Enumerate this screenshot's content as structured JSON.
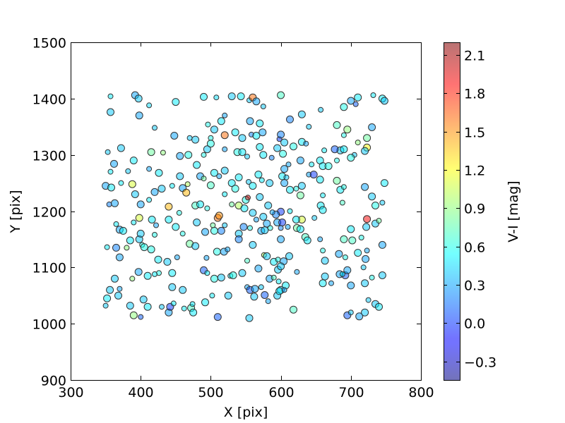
{
  "chart_data": {
    "type": "scatter",
    "xlabel": "X [pix]",
    "ylabel": "Y [pix]",
    "xlim": [
      300,
      800
    ],
    "ylim": [
      900,
      1500
    ],
    "xticks": [
      300,
      400,
      500,
      600,
      700,
      800
    ],
    "yticks": [
      900,
      1000,
      1100,
      1200,
      1300,
      1400,
      1500
    ],
    "colorbar": {
      "label": "V-I [mag]",
      "range": [
        -0.45,
        2.2
      ],
      "ticks": [
        "2.1",
        "1.8",
        "1.5",
        "1.2",
        "0.9",
        "0.6",
        "0.3",
        "0.0",
        "−0.3"
      ],
      "tick_values": [
        2.1,
        1.8,
        1.5,
        1.2,
        0.9,
        0.6,
        0.3,
        0.0,
        -0.3
      ],
      "colormap": "jet"
    },
    "grid": false,
    "points": [
      [
        357,
        1404,
        0.5
      ],
      [
        392,
        1406,
        0.3
      ],
      [
        397,
        1400,
        0.4
      ],
      [
        412,
        1388,
        0.45
      ],
      [
        450,
        1394,
        0.5
      ],
      [
        490,
        1403,
        0.5
      ],
      [
        508,
        1402,
        0.45
      ],
      [
        530,
        1404,
        0.4
      ],
      [
        543,
        1404,
        0.5
      ],
      [
        555,
        1397,
        0.4
      ],
      [
        560,
        1402,
        1.6
      ],
      [
        565,
        1395,
        0.3
      ],
      [
        575,
        1386,
        0.4
      ],
      [
        600,
        1406,
        0.7
      ],
      [
        710,
        1402,
        0.5
      ],
      [
        732,
        1406,
        0.5
      ],
      [
        745,
        1400,
        0.5
      ],
      [
        748,
        1396,
        0.4
      ],
      [
        707,
        1390,
        0.1
      ],
      [
        700,
        1396,
        0.3
      ],
      [
        690,
        1385,
        0.6
      ],
      [
        657,
        1380,
        0.4
      ],
      [
        630,
        1372,
        0.4
      ],
      [
        613,
        1363,
        0.2
      ],
      [
        520,
        1370,
        0.3
      ],
      [
        556,
        1360,
        0.3
      ],
      [
        515,
        1360,
        0.5
      ],
      [
        496,
        1354,
        0.6
      ],
      [
        398,
        1370,
        0.3
      ],
      [
        357,
        1376,
        0.4
      ],
      [
        420,
        1348,
        0.4
      ],
      [
        505,
        1345,
        0.4
      ],
      [
        570,
        1356,
        0.5
      ],
      [
        640,
        1350,
        0.4
      ],
      [
        680,
        1353,
        0.7
      ],
      [
        695,
        1345,
        0.9
      ],
      [
        690,
        1335,
        0.6
      ],
      [
        730,
        1349,
        0.3
      ],
      [
        723,
        1330,
        0.8
      ],
      [
        710,
        1322,
        0.9
      ],
      [
        723,
        1313,
        1.2
      ],
      [
        720,
        1307,
        0.4
      ],
      [
        705,
        1300,
        0.4
      ],
      [
        685,
        1308,
        0.4
      ],
      [
        677,
        1310,
        0.1
      ],
      [
        662,
        1308,
        0.5
      ],
      [
        656,
        1290,
        0.5
      ],
      [
        630,
        1323,
        0.5
      ],
      [
        636,
        1320,
        0.3
      ],
      [
        618,
        1315,
        0.6
      ],
      [
        605,
        1322,
        0.4
      ],
      [
        598,
        1328,
        0.0
      ],
      [
        600,
        1336,
        0.2
      ],
      [
        574,
        1340,
        0.3
      ],
      [
        558,
        1336,
        0.2
      ],
      [
        565,
        1334,
        0.5
      ],
      [
        520,
        1335,
        1.6
      ],
      [
        500,
        1330,
        0.6
      ],
      [
        478,
        1327,
        0.4
      ],
      [
        448,
        1334,
        0.3
      ],
      [
        353,
        1305,
        0.4
      ],
      [
        372,
        1312,
        0.4
      ],
      [
        362,
        1284,
        0.3
      ],
      [
        382,
        1271,
        0.4
      ],
      [
        390,
        1290,
        0.5
      ],
      [
        415,
        1305,
        0.8
      ],
      [
        432,
        1304,
        0.9
      ],
      [
        456,
        1298,
        0.3
      ],
      [
        468,
        1300,
        0.6
      ],
      [
        490,
        1300,
        0.6
      ],
      [
        495,
        1310,
        0.4
      ],
      [
        500,
        1320,
        0.6
      ],
      [
        520,
        1310,
        0.3
      ],
      [
        538,
        1305,
        0.6
      ],
      [
        545,
        1305,
        0.5
      ],
      [
        552,
        1297,
        0.4
      ],
      [
        570,
        1314,
        0.5
      ],
      [
        575,
        1300,
        0.5
      ],
      [
        587,
        1295,
        0.2
      ],
      [
        595,
        1312,
        0.4
      ],
      [
        603,
        1302,
        0.6
      ],
      [
        611,
        1283,
        0.3
      ],
      [
        605,
        1275,
        0.3
      ],
      [
        628,
        1290,
        0.3
      ],
      [
        644,
        1283,
        0.5
      ],
      [
        660,
        1280,
        0.5
      ],
      [
        668,
        1280,
        0.6
      ],
      [
        680,
        1290,
        0.6
      ],
      [
        690,
        1310,
        0.5
      ],
      [
        700,
        1295,
        0.6
      ],
      [
        357,
        1270,
        0.5
      ],
      [
        350,
        1245,
        0.3
      ],
      [
        358,
        1242,
        0.5
      ],
      [
        372,
        1250,
        0.5
      ],
      [
        388,
        1248,
        1.1
      ],
      [
        392,
        1230,
        0.4
      ],
      [
        412,
        1275,
        0.3
      ],
      [
        426,
        1268,
        0.5
      ],
      [
        430,
        1240,
        0.4
      ],
      [
        445,
        1245,
        0.5
      ],
      [
        456,
        1262,
        0.4
      ],
      [
        460,
        1241,
        0.3
      ],
      [
        467,
        1248,
        1.0
      ],
      [
        465,
        1233,
        1.4
      ],
      [
        485,
        1262,
        0.3
      ],
      [
        490,
        1258,
        0.8
      ],
      [
        500,
        1246,
        0.7
      ],
      [
        505,
        1268,
        0.5
      ],
      [
        512,
        1262,
        0.3
      ],
      [
        520,
        1272,
        0.4
      ],
      [
        530,
        1250,
        0.5
      ],
      [
        520,
        1230,
        0.5
      ],
      [
        535,
        1240,
        0.6
      ],
      [
        540,
        1260,
        0.5
      ],
      [
        554,
        1252,
        0.4
      ],
      [
        560,
        1245,
        0.5
      ],
      [
        568,
        1265,
        0.5
      ],
      [
        573,
        1255,
        0.5
      ],
      [
        584,
        1250,
        0.4
      ],
      [
        602,
        1262,
        0.5
      ],
      [
        608,
        1260,
        0.4
      ],
      [
        605,
        1250,
        0.3
      ],
      [
        613,
        1238,
        0.5
      ],
      [
        622,
        1240,
        0.6
      ],
      [
        628,
        1228,
        0.8
      ],
      [
        630,
        1245,
        0.4
      ],
      [
        640,
        1265,
        0.3
      ],
      [
        647,
        1265,
        0.0
      ],
      [
        656,
        1256,
        0.5
      ],
      [
        660,
        1228,
        0.5
      ],
      [
        680,
        1254,
        0.8
      ],
      [
        685,
        1238,
        0.5
      ],
      [
        690,
        1243,
        0.6
      ],
      [
        720,
        1243,
        0.3
      ],
      [
        748,
        1250,
        0.5
      ],
      [
        745,
        1215,
        0.4
      ],
      [
        730,
        1226,
        0.4
      ],
      [
        735,
        1210,
        0.6
      ],
      [
        688,
        1215,
        0.7
      ],
      [
        657,
        1210,
        0.5
      ],
      [
        660,
        1202,
        0.5
      ],
      [
        648,
        1188,
        0.4
      ],
      [
        630,
        1185,
        1.1
      ],
      [
        622,
        1185,
        0.5
      ],
      [
        613,
        1200,
        0.5
      ],
      [
        600,
        1199,
        0.0
      ],
      [
        593,
        1194,
        0.2
      ],
      [
        588,
        1198,
        0.3
      ],
      [
        582,
        1210,
        0.4
      ],
      [
        570,
        1225,
        0.4
      ],
      [
        355,
        1212,
        0.2
      ],
      [
        363,
        1214,
        0.3
      ],
      [
        400,
        1212,
        0.3
      ],
      [
        412,
        1220,
        0.5
      ],
      [
        420,
        1234,
        0.3
      ],
      [
        440,
        1208,
        1.4
      ],
      [
        455,
        1197,
        0.6
      ],
      [
        478,
        1210,
        0.7
      ],
      [
        485,
        1212,
        0.5
      ],
      [
        495,
        1205,
        0.6
      ],
      [
        510,
        1188,
        1.6
      ],
      [
        512,
        1192,
        1.5
      ],
      [
        530,
        1212,
        0.8
      ],
      [
        540,
        1210,
        1.0
      ],
      [
        550,
        1220,
        0.6
      ],
      [
        553,
        1224,
        2.0
      ],
      [
        548,
        1205,
        0.5
      ],
      [
        560,
        1197,
        0.4
      ],
      [
        565,
        1185,
        0.3
      ],
      [
        575,
        1190,
        0.4
      ],
      [
        580,
        1178,
        0.3
      ],
      [
        585,
        1170,
        0.6
      ],
      [
        595,
        1180,
        0.3
      ],
      [
        602,
        1180,
        0.0
      ],
      [
        610,
        1172,
        0.3
      ],
      [
        623,
        1170,
        0.8
      ],
      [
        628,
        1168,
        0.5
      ],
      [
        520,
        1175,
        0.4
      ],
      [
        515,
        1165,
        0.2
      ],
      [
        505,
        1165,
        0.6
      ],
      [
        365,
        1177,
        0.5
      ],
      [
        370,
        1167,
        0.3
      ],
      [
        375,
        1165,
        0.5
      ],
      [
        390,
        1180,
        0.5
      ],
      [
        398,
        1188,
        1.1
      ],
      [
        416,
        1185,
        0.5
      ],
      [
        422,
        1175,
        0.3
      ],
      [
        440,
        1185,
        0.5
      ],
      [
        450,
        1172,
        0.5
      ],
      [
        460,
        1160,
        0.6
      ],
      [
        480,
        1180,
        0.4
      ],
      [
        492,
        1163,
        0.3
      ],
      [
        503,
        1175,
        0.8
      ],
      [
        540,
        1160,
        0.4
      ],
      [
        547,
        1172,
        0.2
      ],
      [
        556,
        1170,
        0.6
      ],
      [
        572,
        1165,
        0.3
      ],
      [
        577,
        1166,
        0.4
      ],
      [
        600,
        1170,
        0.2
      ],
      [
        635,
        1154,
        0.7
      ],
      [
        638,
        1148,
        0.5
      ],
      [
        656,
        1150,
        0.3
      ],
      [
        690,
        1150,
        0.7
      ],
      [
        702,
        1148,
        0.7
      ],
      [
        715,
        1153,
        0.6
      ],
      [
        722,
        1172,
        0.4
      ],
      [
        735,
        1178,
        0.4
      ],
      [
        740,
        1183,
        0.8
      ],
      [
        723,
        1186,
        1.9
      ],
      [
        700,
        1168,
        0.5
      ],
      [
        352,
        1136,
        0.5
      ],
      [
        365,
        1135,
        0.2
      ],
      [
        370,
        1118,
        0.3
      ],
      [
        380,
        1135,
        0.9
      ],
      [
        385,
        1148,
        0.5
      ],
      [
        398,
        1150,
        0.4
      ],
      [
        402,
        1140,
        0.6
      ],
      [
        405,
        1136,
        0.6
      ],
      [
        415,
        1132,
        0.6
      ],
      [
        420,
        1158,
        0.6
      ],
      [
        425,
        1114,
        0.5
      ],
      [
        438,
        1110,
        0.4
      ],
      [
        452,
        1118,
        0.3
      ],
      [
        470,
        1142,
        0.8
      ],
      [
        478,
        1138,
        0.4
      ],
      [
        494,
        1117,
        0.3
      ],
      [
        509,
        1128,
        0.6
      ],
      [
        519,
        1128,
        0.3
      ],
      [
        524,
        1132,
        0.3
      ],
      [
        540,
        1150,
        0.2
      ],
      [
        560,
        1140,
        0.4
      ],
      [
        576,
        1122,
        1.0
      ],
      [
        580,
        1120,
        0.4
      ],
      [
        590,
        1110,
        0.5
      ],
      [
        596,
        1114,
        0.6
      ],
      [
        604,
        1111,
        0.3
      ],
      [
        612,
        1120,
        0.4
      ],
      [
        660,
        1130,
        0.6
      ],
      [
        663,
        1112,
        0.4
      ],
      [
        683,
        1124,
        0.3
      ],
      [
        692,
        1118,
        0.6
      ],
      [
        710,
        1126,
        0.5
      ],
      [
        721,
        1115,
        0.3
      ],
      [
        723,
        1130,
        0.3
      ],
      [
        745,
        1140,
        0.3
      ],
      [
        490,
        1095,
        0.1
      ],
      [
        495,
        1090,
        0.5
      ],
      [
        505,
        1080,
        0.6
      ],
      [
        515,
        1082,
        0.4
      ],
      [
        528,
        1085,
        0.5
      ],
      [
        532,
        1086,
        0.6
      ],
      [
        545,
        1090,
        0.4
      ],
      [
        552,
        1112,
        0.7
      ],
      [
        568,
        1098,
        0.3
      ],
      [
        584,
        1080,
        0.3
      ],
      [
        590,
        1082,
        0.7
      ],
      [
        596,
        1096,
        0.4
      ],
      [
        600,
        1102,
        0.4
      ],
      [
        597,
        1075,
        0.5
      ],
      [
        600,
        1060,
        0.4
      ],
      [
        607,
        1068,
        0.5
      ],
      [
        623,
        1092,
        0.3
      ],
      [
        663,
        1084,
        0.4
      ],
      [
        660,
        1072,
        0.5
      ],
      [
        672,
        1072,
        0.3
      ],
      [
        684,
        1088,
        0.3
      ],
      [
        692,
        1086,
        0.1
      ],
      [
        688,
        1088,
        0.5
      ],
      [
        700,
        1068,
        0.3
      ],
      [
        720,
        1072,
        0.4
      ],
      [
        730,
        1082,
        0.6
      ],
      [
        745,
        1086,
        0.4
      ],
      [
        695,
        1095,
        0.3
      ],
      [
        718,
        1100,
        0.4
      ],
      [
        363,
        1080,
        0.4
      ],
      [
        356,
        1060,
        0.4
      ],
      [
        370,
        1062,
        0.3
      ],
      [
        368,
        1050,
        0.4
      ],
      [
        352,
        1045,
        0.5
      ],
      [
        350,
        1032,
        0.4
      ],
      [
        385,
        1032,
        0.4
      ],
      [
        390,
        1015,
        0.9
      ],
      [
        400,
        1012,
        0.1
      ],
      [
        404,
        1043,
        0.4
      ],
      [
        410,
        1030,
        0.5
      ],
      [
        430,
        1030,
        0.4
      ],
      [
        440,
        1020,
        0.3
      ],
      [
        442,
        1030,
        0.0
      ],
      [
        447,
        1036,
        0.5
      ],
      [
        445,
        1065,
        0.4
      ],
      [
        460,
        1060,
        0.4
      ],
      [
        462,
        1027,
        0.5
      ],
      [
        472,
        1028,
        0.7
      ],
      [
        475,
        1020,
        0.5
      ],
      [
        474,
        1035,
        0.5
      ],
      [
        492,
        1038,
        0.5
      ],
      [
        510,
        1012,
        0.1
      ],
      [
        502,
        1050,
        0.5
      ],
      [
        525,
        1050,
        0.4
      ],
      [
        555,
        1010,
        0.4
      ],
      [
        552,
        1065,
        0.3
      ],
      [
        556,
        1060,
        0.1
      ],
      [
        563,
        1062,
        0.3
      ],
      [
        572,
        1065,
        0.4
      ],
      [
        562,
        1048,
        0.4
      ],
      [
        577,
        1051,
        0.1
      ],
      [
        582,
        1040,
        0.3
      ],
      [
        595,
        1050,
        0.4
      ],
      [
        598,
        1058,
        0.5
      ],
      [
        605,
        1060,
        0.3
      ],
      [
        618,
        1025,
        0.7
      ],
      [
        695,
        1015,
        0.1
      ],
      [
        700,
        1020,
        0.4
      ],
      [
        712,
        1013,
        0.3
      ],
      [
        720,
        1020,
        0.4
      ],
      [
        725,
        1042,
        0.4
      ],
      [
        735,
        1035,
        0.4
      ],
      [
        740,
        1030,
        0.5
      ],
      [
        388,
        1080,
        0.9
      ],
      [
        397,
        1092,
        0.3
      ],
      [
        410,
        1085,
        0.5
      ],
      [
        426,
        1090,
        0.6
      ],
      [
        445,
        1090,
        0.5
      ],
      [
        400,
        1160,
        0.4
      ],
      [
        420,
        1088,
        0.5
      ],
      [
        545,
        1330,
        0.4
      ],
      [
        535,
        1340,
        0.5
      ],
      [
        470,
        1330,
        0.4
      ],
      [
        480,
        1282,
        0.5
      ],
      [
        600,
        1150,
        0.3
      ]
    ]
  }
}
